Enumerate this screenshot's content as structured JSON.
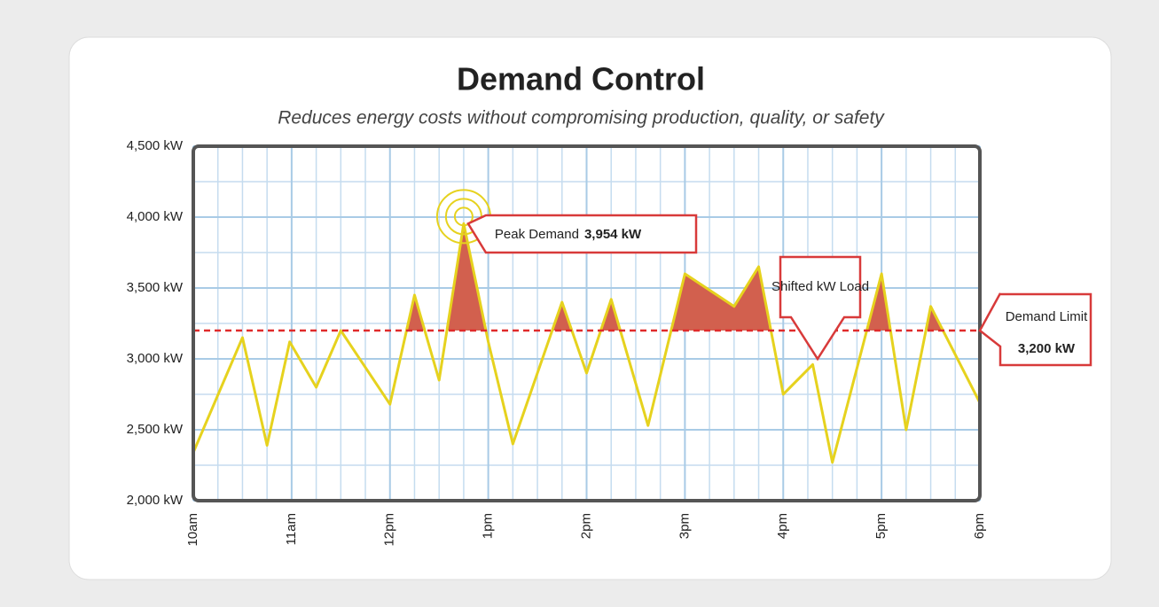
{
  "chart_data": {
    "type": "line",
    "title": "Demand Control",
    "subtitle": "Reduces energy costs without compromising production, quality, or safety",
    "x": [
      10,
      10.5,
      10.75,
      10.98,
      11.25,
      11.5,
      12,
      12.25,
      12.5,
      12.75,
      13,
      13.25,
      13.75,
      14,
      14.25,
      14.625,
      15,
      15.5,
      15.75,
      16,
      16.3,
      16.5,
      17,
      17.25,
      17.5,
      18
    ],
    "series": [
      {
        "name": "Demand",
        "color": "#e6d21e",
        "values": [
          2340,
          3150,
          2390,
          3120,
          2800,
          3200,
          2680,
          3450,
          2850,
          3954,
          3120,
          2400,
          3400,
          2900,
          3420,
          2530,
          3600,
          3370,
          3650,
          2750,
          2960,
          2270,
          3600,
          2500,
          3370,
          2690
        ]
      }
    ],
    "xlim": [
      10,
      18
    ],
    "xticks": [
      {
        "value": 10,
        "label": "10am"
      },
      {
        "value": 11,
        "label": "11am"
      },
      {
        "value": 12,
        "label": "12pm"
      },
      {
        "value": 13,
        "label": "1pm"
      },
      {
        "value": 14,
        "label": "2pm"
      },
      {
        "value": 15,
        "label": "3pm"
      },
      {
        "value": 16,
        "label": "4pm"
      },
      {
        "value": 17,
        "label": "5pm"
      },
      {
        "value": 18,
        "label": "6pm"
      }
    ],
    "ylim": [
      2000,
      4500
    ],
    "yticks": [
      {
        "value": 2000,
        "label": "2,000 kW"
      },
      {
        "value": 2500,
        "label": "2,500 kW"
      },
      {
        "value": 3000,
        "label": "3,000 kW"
      },
      {
        "value": 3500,
        "label": "3,500 kW"
      },
      {
        "value": 4000,
        "label": "4,000 kW"
      },
      {
        "value": 4500,
        "label": "4,500 kW"
      }
    ],
    "grid": true,
    "excess_color": "#d2604e",
    "demand_limit": {
      "value": 3200,
      "label": "3,200 kW",
      "text": "Demand Limit",
      "color": "#e02b2b"
    },
    "peak_annotation": {
      "text": "Peak Demand",
      "label": "3,954 kW"
    },
    "shift_annotation": {
      "text": "Shifted kW Load"
    }
  }
}
